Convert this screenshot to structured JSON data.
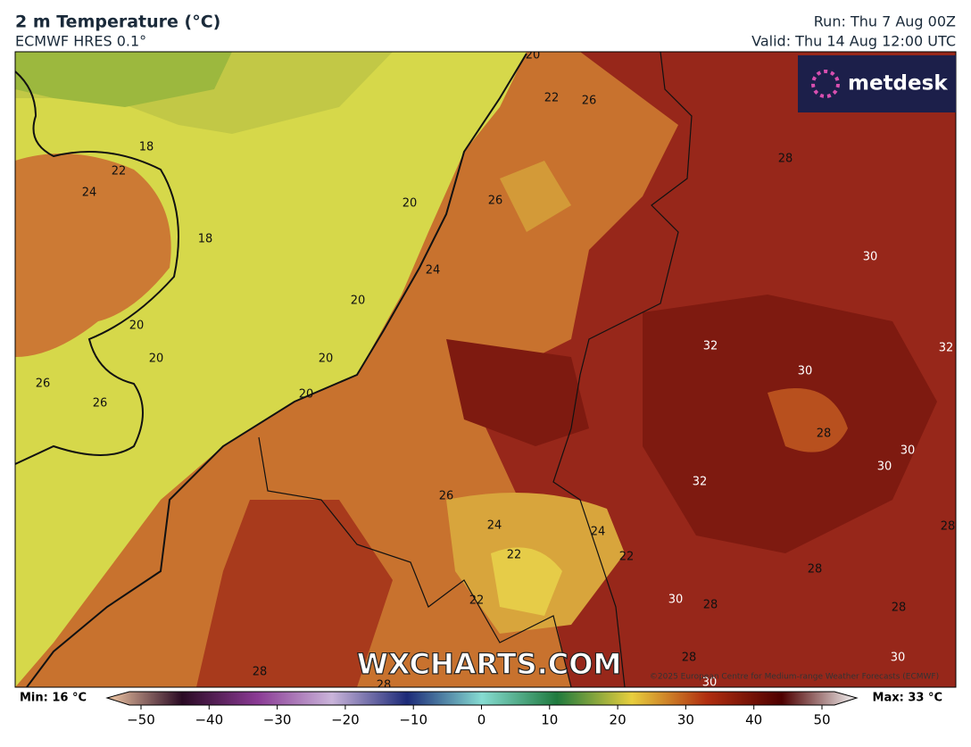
{
  "header": {
    "title": "2 m Temperature (°C)",
    "model": "ECMWF HRES 0.1°",
    "run": "Run: Thu 7 Aug 00Z",
    "valid": "Valid: Thu 14 Aug 12:00 UTC"
  },
  "logo": "metdesk",
  "watermark": "WXCHARTS.COM",
  "copyright": "©2025 European Centre for Medium-range Weather Forecasts (ECMWF)",
  "contour_labels": [
    "20",
    "22",
    "26",
    "18",
    "22",
    "24",
    "20",
    "26",
    "18",
    "28",
    "24",
    "30",
    "20",
    "20",
    "20",
    "20",
    "32",
    "30",
    "32",
    "26",
    "20",
    "26",
    "28",
    "30",
    "30",
    "32",
    "26",
    "24",
    "24",
    "28",
    "22",
    "22",
    "28",
    "30",
    "22",
    "28",
    "28",
    "28",
    "30",
    "28",
    "30",
    "28"
  ],
  "colorbar": {
    "min_label": "Min: 16 °C",
    "max_label": "Max: 33 °C",
    "ticks": [
      "−50",
      "−40",
      "−30",
      "−20",
      "−10",
      "0",
      "10",
      "20",
      "30",
      "40",
      "50"
    ]
  }
}
